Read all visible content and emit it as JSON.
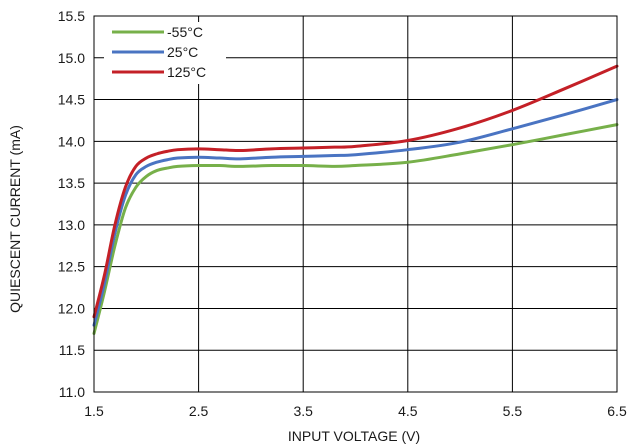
{
  "chart_data": {
    "type": "line",
    "xlabel": "INPUT VOLTAGE (V)",
    "ylabel": "QUIESCENT CURRENT (mA)",
    "xlim": [
      1.5,
      6.5
    ],
    "ylim": [
      11.0,
      15.5
    ],
    "x_ticks": [
      "1.5",
      "2.5",
      "3.5",
      "4.5",
      "5.5",
      "6.5"
    ],
    "y_ticks": [
      "11.0",
      "11.5",
      "12.0",
      "12.5",
      "13.0",
      "13.5",
      "14.0",
      "14.5",
      "15.0",
      "15.5"
    ],
    "grid": true,
    "legend_position": "top-left",
    "series": [
      {
        "name": "-55°C",
        "color": "#77b04a",
        "x": [
          1.5,
          1.6,
          1.7,
          1.8,
          1.9,
          2.0,
          2.1,
          2.2,
          2.3,
          2.5,
          2.7,
          2.9,
          3.2,
          3.5,
          3.8,
          4.0,
          4.5,
          5.0,
          5.5,
          6.0,
          6.5
        ],
        "y": [
          11.7,
          12.2,
          12.75,
          13.2,
          13.45,
          13.58,
          13.65,
          13.68,
          13.7,
          13.71,
          13.71,
          13.7,
          13.71,
          13.71,
          13.7,
          13.71,
          13.75,
          13.85,
          13.96,
          14.08,
          14.2
        ]
      },
      {
        "name": "25°C",
        "color": "#4a74c2",
        "x": [
          1.5,
          1.6,
          1.7,
          1.8,
          1.9,
          2.0,
          2.1,
          2.2,
          2.3,
          2.5,
          2.7,
          2.9,
          3.2,
          3.5,
          3.8,
          4.0,
          4.5,
          5.0,
          5.5,
          6.0,
          6.5
        ],
        "y": [
          11.8,
          12.3,
          12.9,
          13.35,
          13.6,
          13.7,
          13.75,
          13.78,
          13.8,
          13.81,
          13.8,
          13.79,
          13.81,
          13.82,
          13.83,
          13.84,
          13.9,
          13.99,
          14.15,
          14.32,
          14.5
        ]
      },
      {
        "name": "125°C",
        "color": "#c42027",
        "x": [
          1.5,
          1.6,
          1.7,
          1.8,
          1.9,
          2.0,
          2.1,
          2.2,
          2.3,
          2.5,
          2.7,
          2.9,
          3.2,
          3.5,
          3.8,
          4.0,
          4.5,
          5.0,
          5.5,
          6.0,
          6.5
        ],
        "y": [
          11.9,
          12.4,
          13.0,
          13.45,
          13.7,
          13.8,
          13.85,
          13.88,
          13.9,
          13.91,
          13.9,
          13.89,
          13.91,
          13.92,
          13.93,
          13.94,
          14.01,
          14.16,
          14.37,
          14.63,
          14.9
        ]
      }
    ]
  }
}
